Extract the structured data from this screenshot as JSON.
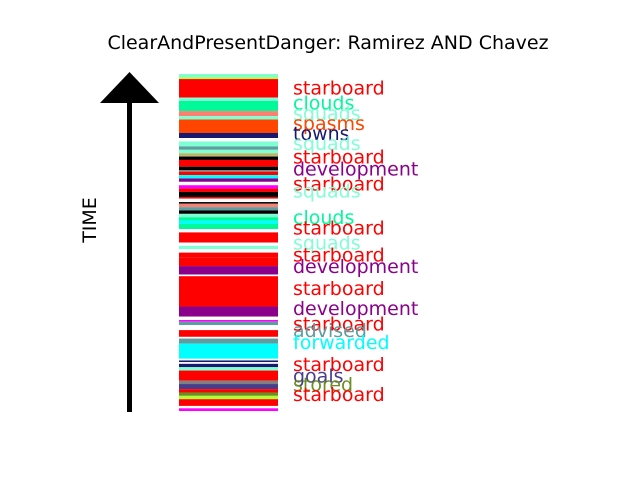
{
  "chart_data": {
    "type": "timeline-strip",
    "title": "ClearAndPresentDanger: Ramirez AND Chavez",
    "ylabel": "TIME",
    "colors": {
      "starboard": "#ff0000",
      "clouds": "#00fa9a",
      "squads": "#7fffd4",
      "spasms": "#ff4500",
      "towns": "#191970",
      "development": "#8b008b",
      "advised": "#5f9ea0",
      "forwarded": "#00ffff",
      "goals": "#483d8b",
      "stored": "#6b8e23",
      "magenta": "#ff00ff",
      "black": "#000000",
      "yellowgreen": "#adff2f",
      "gray": "#808080",
      "salmon": "#fa8072",
      "darkkhaki": "#bdb76b",
      "mediumvioletred": "#c71585"
    },
    "bands": [
      {
        "start": 0.0,
        "end": 0.01,
        "color": "#7fffd4"
      },
      {
        "start": 0.01,
        "end": 0.015,
        "color": "#adff2f"
      },
      {
        "start": 0.015,
        "end": 0.07,
        "color": "#ff0000"
      },
      {
        "start": 0.07,
        "end": 0.08,
        "color": "#7fffd4"
      },
      {
        "start": 0.08,
        "end": 0.11,
        "color": "#00fa9a"
      },
      {
        "start": 0.11,
        "end": 0.125,
        "color": "#fa8072"
      },
      {
        "start": 0.125,
        "end": 0.135,
        "color": "#7fffd4"
      },
      {
        "start": 0.135,
        "end": 0.175,
        "color": "#ff4500"
      },
      {
        "start": 0.175,
        "end": 0.19,
        "color": "#191970"
      },
      {
        "start": 0.19,
        "end": 0.2,
        "color": "#ffffff"
      },
      {
        "start": 0.2,
        "end": 0.215,
        "color": "#7fffd4"
      },
      {
        "start": 0.215,
        "end": 0.225,
        "color": "#5f9ea0"
      },
      {
        "start": 0.225,
        "end": 0.235,
        "color": "#7fffd4"
      },
      {
        "start": 0.235,
        "end": 0.245,
        "color": "#bdb76b"
      },
      {
        "start": 0.245,
        "end": 0.255,
        "color": "#000000"
      },
      {
        "start": 0.255,
        "end": 0.275,
        "color": "#ff0000"
      },
      {
        "start": 0.275,
        "end": 0.285,
        "color": "#000000"
      },
      {
        "start": 0.285,
        "end": 0.29,
        "color": "#808080"
      },
      {
        "start": 0.29,
        "end": 0.3,
        "color": "#ff0000"
      },
      {
        "start": 0.3,
        "end": 0.31,
        "color": "#00ffff"
      },
      {
        "start": 0.31,
        "end": 0.32,
        "color": "#8b008b"
      },
      {
        "start": 0.32,
        "end": 0.33,
        "color": "#ffffff"
      },
      {
        "start": 0.33,
        "end": 0.34,
        "color": "#ff00ff"
      },
      {
        "start": 0.34,
        "end": 0.35,
        "color": "#ff0000"
      },
      {
        "start": 0.35,
        "end": 0.365,
        "color": "#000000"
      },
      {
        "start": 0.365,
        "end": 0.37,
        "color": "#ff0000"
      },
      {
        "start": 0.37,
        "end": 0.38,
        "color": "#ffffff"
      },
      {
        "start": 0.38,
        "end": 0.385,
        "color": "#000000"
      },
      {
        "start": 0.385,
        "end": 0.395,
        "color": "#fa8072"
      },
      {
        "start": 0.395,
        "end": 0.405,
        "color": "#5f9ea0"
      },
      {
        "start": 0.405,
        "end": 0.415,
        "color": "#000000"
      },
      {
        "start": 0.415,
        "end": 0.425,
        "color": "#7fffd4"
      },
      {
        "start": 0.425,
        "end": 0.435,
        "color": "#00fa9a"
      },
      {
        "start": 0.435,
        "end": 0.445,
        "color": "#00ffff"
      },
      {
        "start": 0.445,
        "end": 0.46,
        "color": "#00fa9a"
      },
      {
        "start": 0.46,
        "end": 0.47,
        "color": "#ffffff"
      },
      {
        "start": 0.47,
        "end": 0.5,
        "color": "#ff0000"
      },
      {
        "start": 0.5,
        "end": 0.51,
        "color": "#ffffff"
      },
      {
        "start": 0.51,
        "end": 0.52,
        "color": "#7fffd4"
      },
      {
        "start": 0.52,
        "end": 0.53,
        "color": "#ffffff"
      },
      {
        "start": 0.53,
        "end": 0.545,
        "color": "#ff0000"
      },
      {
        "start": 0.545,
        "end": 0.57,
        "color": "#ff0000"
      },
      {
        "start": 0.57,
        "end": 0.595,
        "color": "#8b008b"
      },
      {
        "start": 0.595,
        "end": 0.6,
        "color": "#ffffff"
      },
      {
        "start": 0.6,
        "end": 0.69,
        "color": "#ff0000"
      },
      {
        "start": 0.69,
        "end": 0.72,
        "color": "#8b008b"
      },
      {
        "start": 0.72,
        "end": 0.73,
        "color": "#ffffff"
      },
      {
        "start": 0.73,
        "end": 0.735,
        "color": "#ff00ff"
      },
      {
        "start": 0.735,
        "end": 0.745,
        "color": "#5f9ea0"
      },
      {
        "start": 0.745,
        "end": 0.76,
        "color": "#ffffff"
      },
      {
        "start": 0.76,
        "end": 0.77,
        "color": "#ff0000"
      },
      {
        "start": 0.77,
        "end": 0.78,
        "color": "#ff0000"
      },
      {
        "start": 0.78,
        "end": 0.785,
        "color": "#ffffff"
      },
      {
        "start": 0.785,
        "end": 0.8,
        "color": "#5f9ea0"
      },
      {
        "start": 0.8,
        "end": 0.845,
        "color": "#00ffff"
      },
      {
        "start": 0.845,
        "end": 0.85,
        "color": "#ffffff"
      },
      {
        "start": 0.85,
        "end": 0.855,
        "color": "#191970"
      },
      {
        "start": 0.855,
        "end": 0.86,
        "color": "#ffffff"
      },
      {
        "start": 0.86,
        "end": 0.87,
        "color": "#191970"
      },
      {
        "start": 0.87,
        "end": 0.88,
        "color": "#7fffd4"
      },
      {
        "start": 0.88,
        "end": 0.91,
        "color": "#ff0000"
      },
      {
        "start": 0.91,
        "end": 0.92,
        "color": "#808080"
      },
      {
        "start": 0.92,
        "end": 0.935,
        "color": "#483d8b"
      },
      {
        "start": 0.935,
        "end": 0.945,
        "color": "#ff0000"
      },
      {
        "start": 0.945,
        "end": 0.955,
        "color": "#6b8e23"
      },
      {
        "start": 0.955,
        "end": 0.965,
        "color": "#adff2f"
      },
      {
        "start": 0.965,
        "end": 0.985,
        "color": "#ff0000"
      },
      {
        "start": 0.985,
        "end": 0.992,
        "color": "#ffffff"
      },
      {
        "start": 0.992,
        "end": 1.0,
        "color": "#ff00ff"
      }
    ],
    "labels": [
      {
        "text": "starboard",
        "pos": 0.04,
        "color": "#ff0000"
      },
      {
        "text": "clouds",
        "pos": 0.085,
        "color": "#00fa9a"
      },
      {
        "text": "squads",
        "pos": 0.115,
        "color": "#7fffd4"
      },
      {
        "text": "spasms",
        "pos": 0.145,
        "color": "#ff4500"
      },
      {
        "text": "towns",
        "pos": 0.175,
        "color": "#191970"
      },
      {
        "text": "squads",
        "pos": 0.205,
        "color": "#7fffd4"
      },
      {
        "text": "starboard",
        "pos": 0.245,
        "color": "#ff0000"
      },
      {
        "text": "development",
        "pos": 0.28,
        "color": "#8b008b"
      },
      {
        "text": "starboard",
        "pos": 0.325,
        "color": "#ff0000"
      },
      {
        "text": "squads",
        "pos": 0.345,
        "color": "#7fffd4"
      },
      {
        "text": "clouds",
        "pos": 0.425,
        "color": "#00fa9a"
      },
      {
        "text": "starboard",
        "pos": 0.455,
        "color": "#ff0000"
      },
      {
        "text": "squads",
        "pos": 0.5,
        "color": "#7fffd4"
      },
      {
        "text": "starboard",
        "pos": 0.535,
        "color": "#ff0000"
      },
      {
        "text": "development",
        "pos": 0.57,
        "color": "#8b008b"
      },
      {
        "text": "starboard",
        "pos": 0.635,
        "color": "#ff0000"
      },
      {
        "text": "development",
        "pos": 0.695,
        "color": "#8b008b"
      },
      {
        "text": "starboard",
        "pos": 0.74,
        "color": "#ff0000"
      },
      {
        "text": "advised",
        "pos": 0.76,
        "color": "#5f9ea0"
      },
      {
        "text": "forwarded",
        "pos": 0.795,
        "color": "#00ffff"
      },
      {
        "text": "starboard",
        "pos": 0.86,
        "color": "#ff0000"
      },
      {
        "text": "goals",
        "pos": 0.895,
        "color": "#483d8b"
      },
      {
        "text": "stored",
        "pos": 0.92,
        "color": "#6b8e23"
      },
      {
        "text": "starboard",
        "pos": 0.95,
        "color": "#ff0000"
      }
    ]
  }
}
